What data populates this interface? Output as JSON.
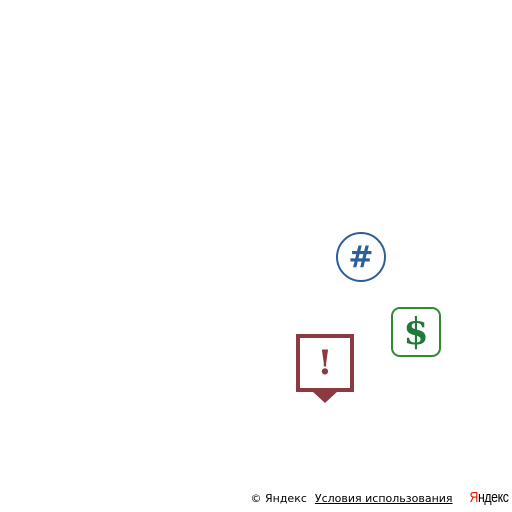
{
  "markers": {
    "hash": {
      "icon": "hash-icon",
      "symbol": "#",
      "color": "#2b5e9a"
    },
    "dollar": {
      "icon": "dollar-icon",
      "symbol": "$",
      "color": "#2e8b2e"
    },
    "alert": {
      "icon": "exclamation-icon",
      "symbol": "!",
      "color": "#8b3a42"
    }
  },
  "attribution": {
    "copyright": "© Яндекс",
    "terms": "Условия использования",
    "logo_first": "Я",
    "logo_rest": "ндекс",
    "logo_color": "#e61400"
  }
}
